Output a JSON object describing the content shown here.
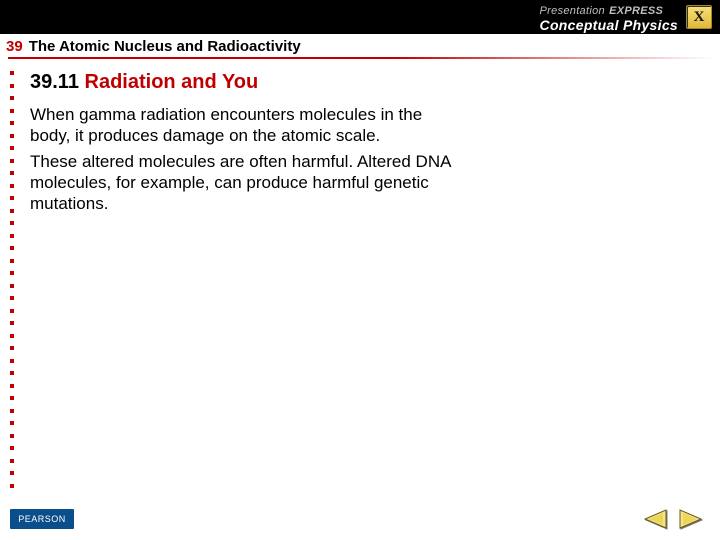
{
  "topbar": {
    "brand_prefix": "Presentation",
    "brand_express": "EXPRESS",
    "book_title": "Conceptual Physics",
    "close_label": "X",
    "bg_color": "#000000"
  },
  "chapter": {
    "number": "39",
    "title": "The Atomic Nucleus and Radioactivity",
    "rule_color": "#c00000"
  },
  "section": {
    "number": "39.11",
    "title": "Radiation and You",
    "title_color": "#c00000"
  },
  "body": {
    "p1": "When gamma radiation encounters molecules in the body, it produces damage on the atomic scale.",
    "p2": "These altered molecules are often harmful. Altered DNA molecules, for example, can produce harmful genetic mutations."
  },
  "footer": {
    "publisher": "PEARSON"
  },
  "style": {
    "dot_color": "#c00000",
    "dot_count": 34,
    "body_font_size": 17,
    "heading_font_size": 20
  }
}
